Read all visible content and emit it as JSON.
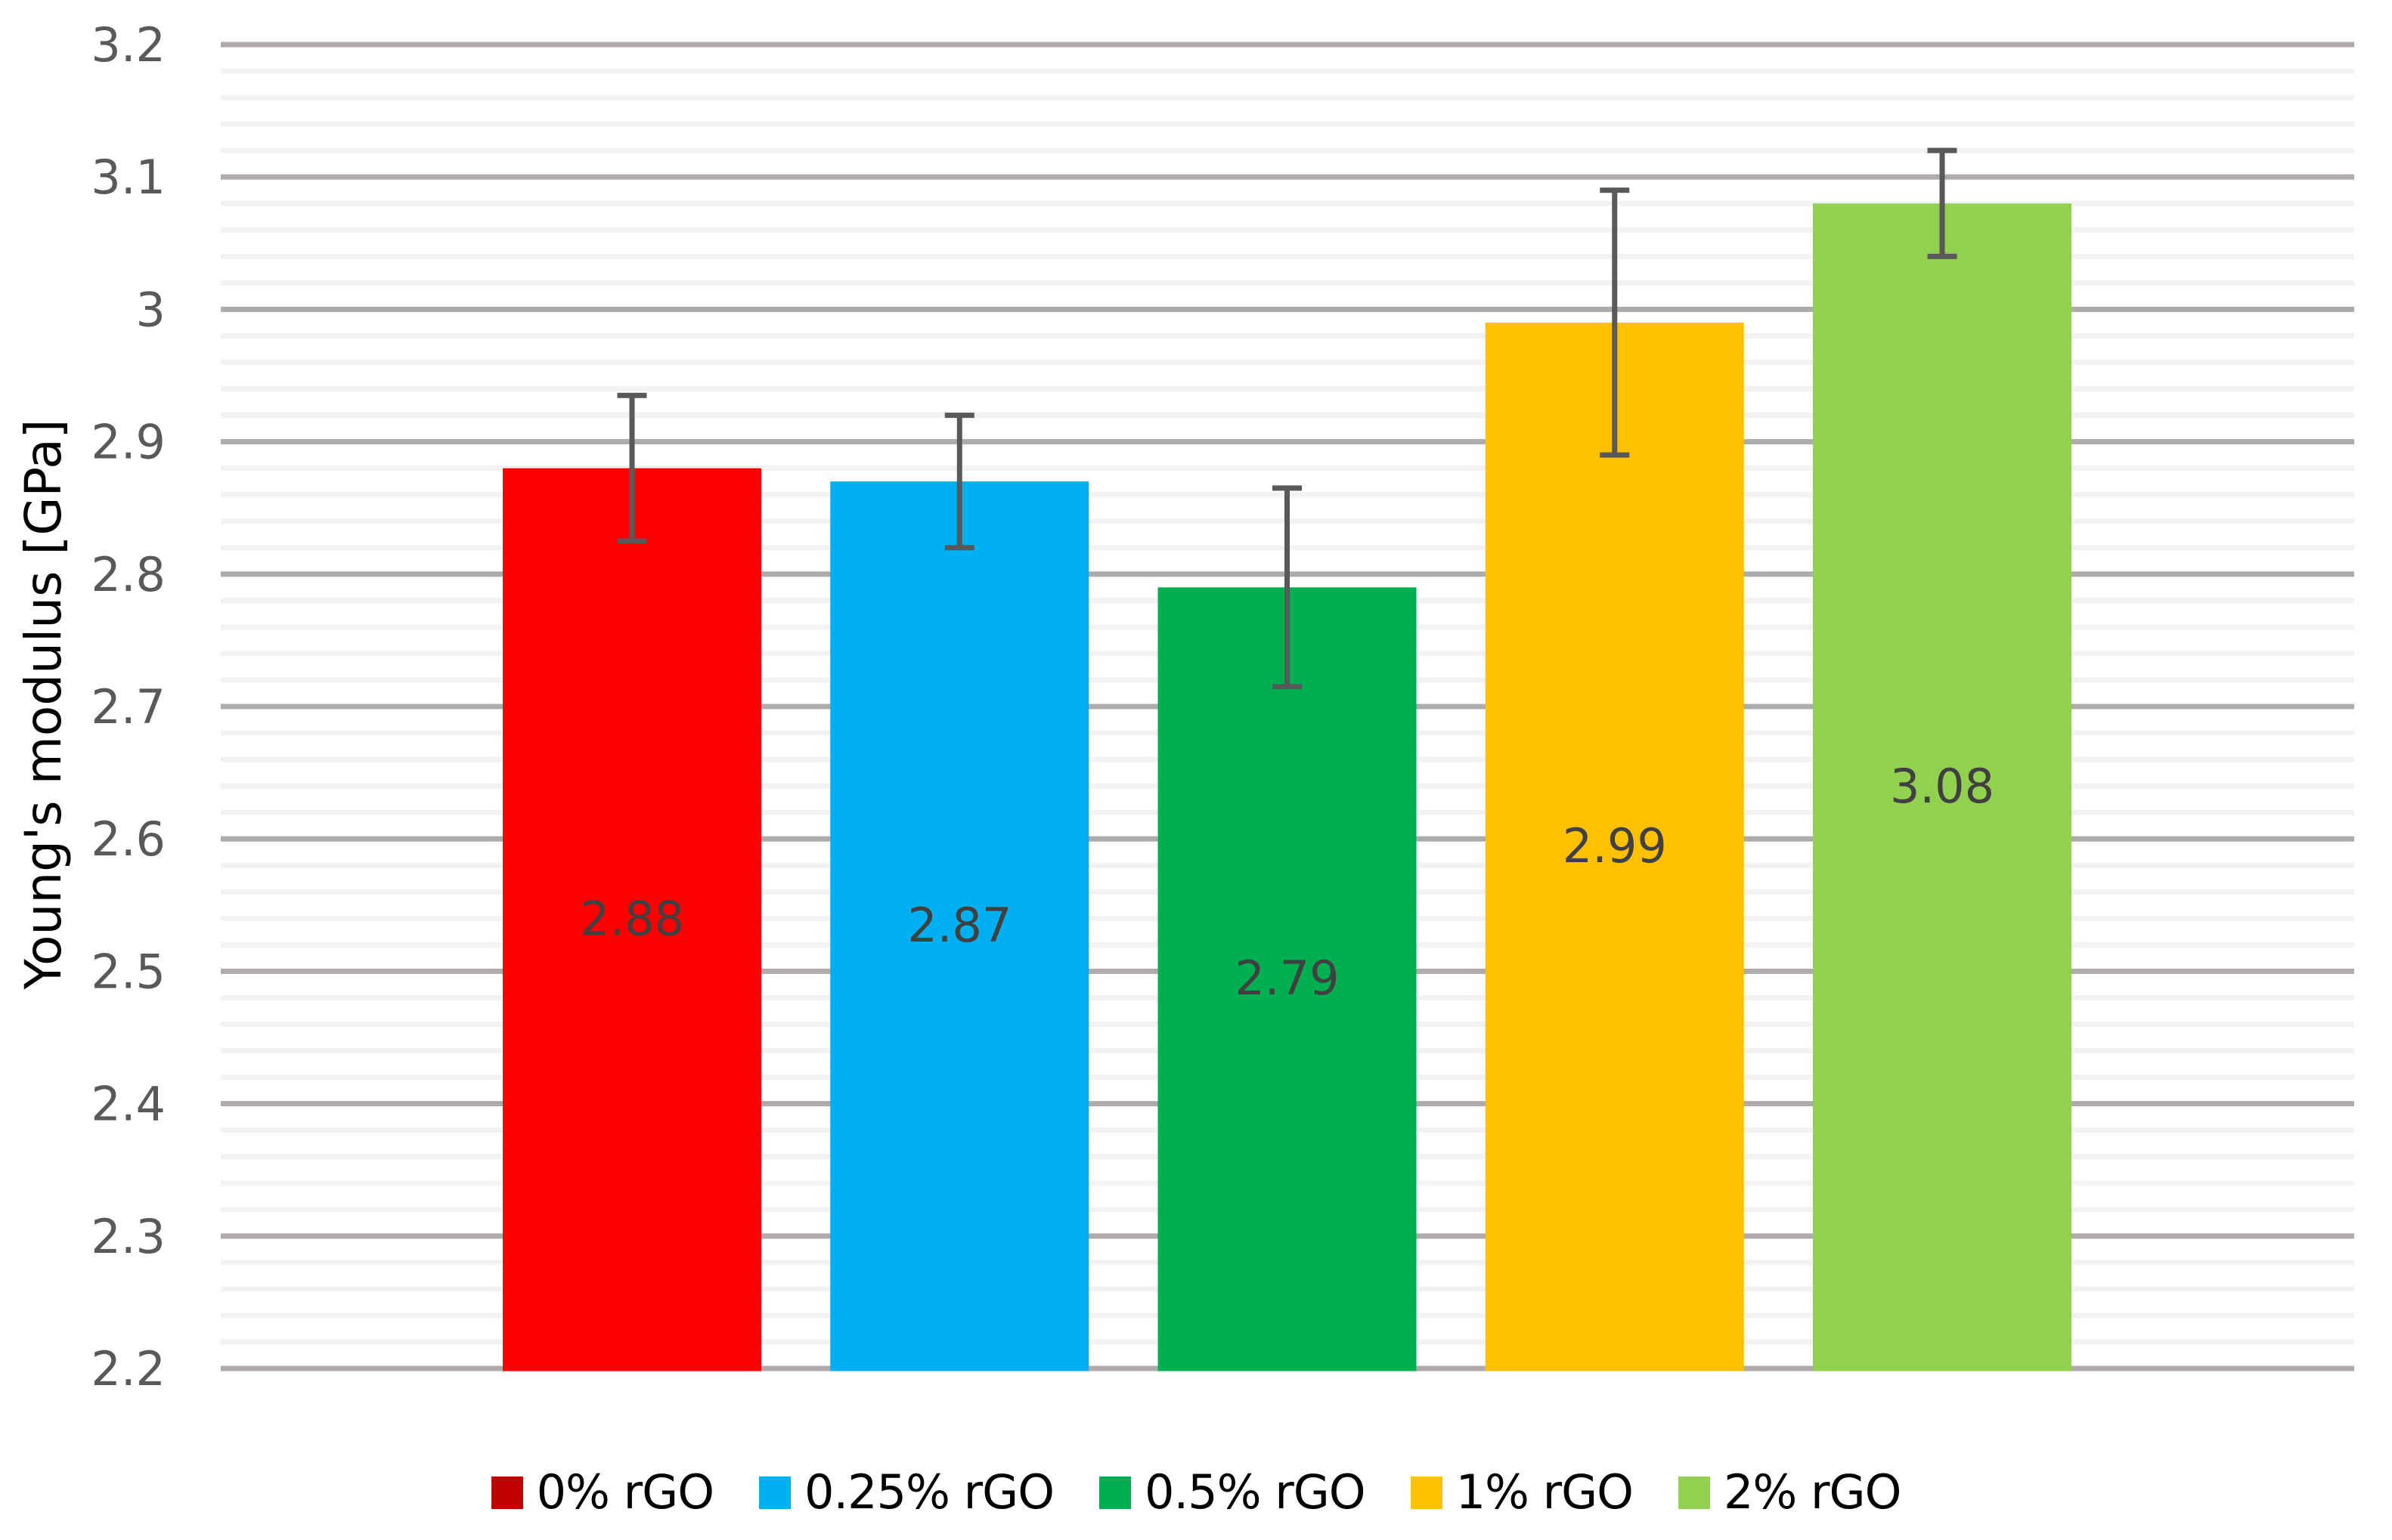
{
  "chart_data": {
    "type": "bar",
    "title": "",
    "xlabel": "",
    "ylabel": "Young's modulus [GPa]",
    "ylim": [
      2.2,
      3.2
    ],
    "yticks": [
      2.2,
      2.3,
      2.4,
      2.5,
      2.6,
      2.7,
      2.8,
      2.9,
      3.0,
      3.1,
      3.2
    ],
    "ytick_labels": [
      "2.2",
      "2.3",
      "2.4",
      "2.5",
      "2.6",
      "2.7",
      "2.8",
      "2.9",
      "3",
      "3.1",
      "3.2"
    ],
    "minor_grid_step": 0.02,
    "grid": true,
    "legend_position": "bottom",
    "categories": [
      "0% rGO",
      "0.25% rGO",
      "0.5% rGO",
      "1% rGO",
      "2% rGO"
    ],
    "values": [
      2.88,
      2.87,
      2.79,
      2.99,
      3.08
    ],
    "value_labels": [
      "2.88",
      "2.87",
      "2.79",
      "2.99",
      "3.08"
    ],
    "error_bars": [
      0.055,
      0.05,
      0.075,
      0.1,
      0.04
    ],
    "colors": [
      "#ff0000",
      "#00b0f0",
      "#00b050",
      "#ffc000",
      "#92d050"
    ],
    "legend": [
      {
        "label": "0% rGO",
        "color": "#c00000"
      },
      {
        "label": "0.25% rGO",
        "color": "#00b0f0"
      },
      {
        "label": "0.5% rGO",
        "color": "#00b050"
      },
      {
        "label": "1% rGO",
        "color": "#ffc000"
      },
      {
        "label": "2% rGO",
        "color": "#92d050"
      }
    ]
  },
  "style": {
    "major_grid_color": "#afabab",
    "minor_grid_color": "#f2f2f2",
    "error_bar_color": "#595959",
    "tick_label_color": "#595959",
    "data_label_color": "#404040"
  }
}
